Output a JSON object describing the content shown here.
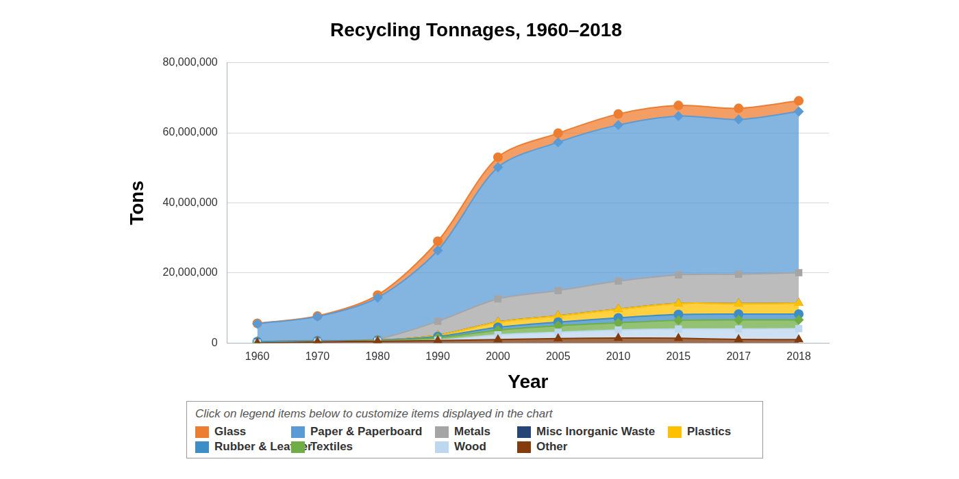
{
  "chart_data": {
    "type": "area",
    "title": "Recycling Tonnages, 1960–2018",
    "x_label": "Year",
    "y_label": "Tons",
    "legend_note": "Click on legend items below to customize items displayed in the chart",
    "categories": [
      "1960",
      "1970",
      "1980",
      "1990",
      "2000",
      "2005",
      "2010",
      "2015",
      "2017",
      "2018"
    ],
    "series": [
      {
        "name": "Glass",
        "color": "#ed7d31",
        "marker": "circle",
        "values": [
          100000,
          160000,
          750000,
          2630000,
          2880000,
          2590000,
          3130000,
          3030000,
          3170000,
          3060000
        ]
      },
      {
        "name": "Paper & Paperboard",
        "color": "#5b9bd5",
        "marker": "diamond",
        "values": [
          5080000,
          6770000,
          11740000,
          20230000,
          37560000,
          42340000,
          44570000,
          45320000,
          44170000,
          45970000
        ]
      },
      {
        "name": "Metals",
        "color": "#a5a5a5",
        "marker": "square",
        "values": [
          50000,
          150000,
          370000,
          3970000,
          6600000,
          7200000,
          7970000,
          8170000,
          8380000,
          8730000
        ]
      },
      {
        "name": "Misc Inorganic Waste",
        "color": "#264478",
        "marker": "triangle",
        "values": [
          0,
          0,
          0,
          0,
          0,
          0,
          0,
          0,
          0,
          0
        ]
      },
      {
        "name": "Plastics",
        "color": "#ffc000",
        "marker": "triangle",
        "values": [
          0,
          0,
          20000,
          370000,
          1480000,
          1780000,
          2500000,
          3140000,
          3000000,
          3090000
        ]
      },
      {
        "name": "Rubber & Leather",
        "color": "#3d8dc7",
        "marker": "circle",
        "values": [
          330000,
          250000,
          130000,
          370000,
          820000,
          1050000,
          1440000,
          1670000,
          1670000,
          1670000
        ]
      },
      {
        "name": "Textiles",
        "color": "#70ad47",
        "marker": "diamond",
        "values": [
          50000,
          60000,
          160000,
          660000,
          1320000,
          1830000,
          2050000,
          2460000,
          2570000,
          2510000
        ]
      },
      {
        "name": "Wood",
        "color": "#bdd7ee",
        "marker": "square",
        "values": [
          0,
          0,
          0,
          130000,
          1370000,
          1830000,
          2280000,
          2660000,
          3000000,
          3100000
        ]
      },
      {
        "name": "Other",
        "color": "#843c0c",
        "marker": "triangle",
        "values": [
          0,
          300000,
          500000,
          680000,
          980000,
          1260000,
          1410000,
          1340000,
          1000000,
          980000
        ]
      }
    ],
    "stacked": true,
    "grid": true,
    "legend": "bottom",
    "ylim": [
      0,
      80000000
    ],
    "yticks": [
      0,
      {
        "value": 20000000,
        "label": "20,000,000"
      },
      {
        "value": 40000000,
        "label": "40,000,000"
      },
      {
        "value": 60000000,
        "label": "60,000,000"
      },
      {
        "value": 80000000,
        "label": "80,000,000"
      }
    ]
  }
}
